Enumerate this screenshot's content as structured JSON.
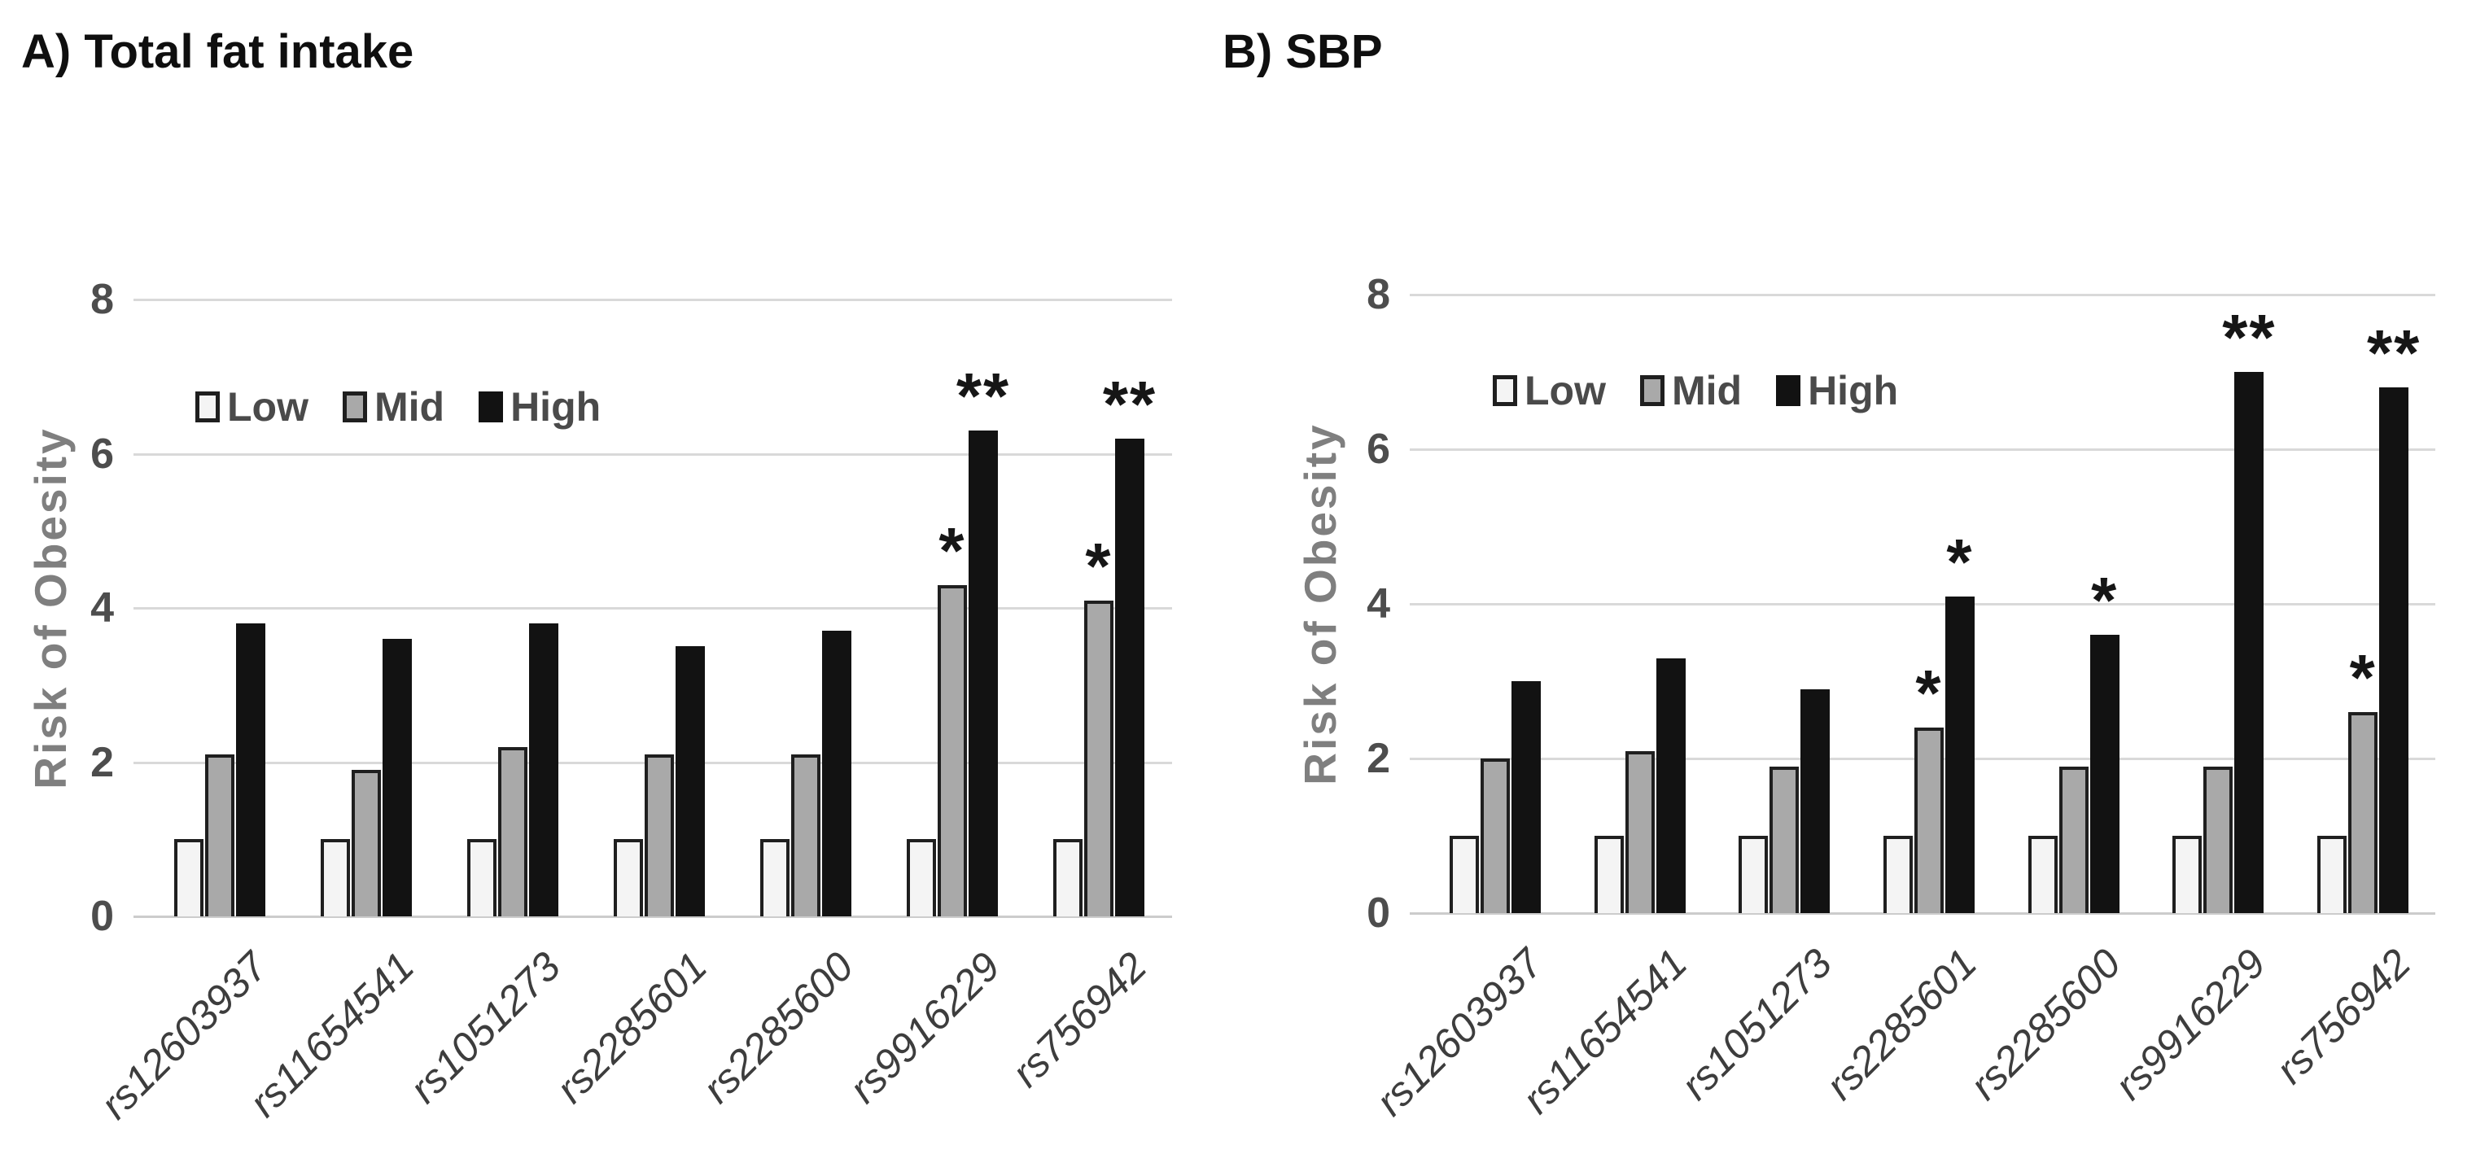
{
  "figure": {
    "background": "#ffffff",
    "colors": {
      "low_fill": "#f4f4f4",
      "mid_fill": "#a9a9a9",
      "high_fill": "#121212",
      "bar_border": "#1f1f1f",
      "gridline": "#d9d9d9",
      "baseline": "#cccccc",
      "axis_text": "#4d4d4d",
      "ylabel_text": "#7f7f7f",
      "legend_text": "#4a4a4a",
      "category_text": "#3d3d3d",
      "title_text": "#0f0f0f",
      "annotation_text": "#161616"
    }
  },
  "chart_data": [
    {
      "id": "A",
      "type": "bar",
      "title": "A) Total fat intake",
      "ylabel": "Risk of Obesity",
      "xlabel": "",
      "ylim": [
        0,
        8
      ],
      "yticks": [
        0,
        2,
        4,
        6,
        8
      ],
      "grid": true,
      "legend_position": "inside-top-left",
      "categories": [
        "rs12603937",
        "rs11654541",
        "rs1051273",
        "rs2285601",
        "rs2285600",
        "rs9916229",
        "rs756942"
      ],
      "series": [
        {
          "name": "Low",
          "values": [
            1.0,
            1.0,
            1.0,
            1.0,
            1.0,
            1.0,
            1.0
          ]
        },
        {
          "name": "Mid",
          "values": [
            2.1,
            1.9,
            2.2,
            2.1,
            2.1,
            4.3,
            4.1
          ]
        },
        {
          "name": "High",
          "values": [
            3.8,
            3.6,
            3.8,
            3.5,
            3.7,
            6.3,
            6.2
          ]
        }
      ],
      "annotations": [
        {
          "category": "rs9916229",
          "series": "Mid",
          "text": "*"
        },
        {
          "category": "rs9916229",
          "series": "High",
          "text": "**"
        },
        {
          "category": "rs756942",
          "series": "Mid",
          "text": "*"
        },
        {
          "category": "rs756942",
          "series": "High",
          "text": "**"
        }
      ]
    },
    {
      "id": "B",
      "type": "bar",
      "title": "B) SBP",
      "ylabel": "Risk of Obesity",
      "xlabel": "",
      "ylim": [
        0,
        8
      ],
      "yticks": [
        0,
        2,
        4,
        6,
        8
      ],
      "grid": true,
      "legend_position": "inside-top-left",
      "categories": [
        "rs12603937",
        "rs11654541",
        "rs1051273",
        "rs2285601",
        "rs2285600",
        "rs9916229",
        "rs756942"
      ],
      "series": [
        {
          "name": "Low",
          "values": [
            1.0,
            1.0,
            1.0,
            1.0,
            1.0,
            1.0,
            1.0
          ]
        },
        {
          "name": "Mid",
          "values": [
            2.0,
            2.1,
            1.9,
            2.4,
            1.9,
            1.9,
            2.6
          ]
        },
        {
          "name": "High",
          "values": [
            3.0,
            3.3,
            2.9,
            4.1,
            3.6,
            7.0,
            6.8
          ]
        }
      ],
      "annotations": [
        {
          "category": "rs2285601",
          "series": "Mid",
          "text": "*"
        },
        {
          "category": "rs2285601",
          "series": "High",
          "text": "*"
        },
        {
          "category": "rs2285600",
          "series": "High",
          "text": "*"
        },
        {
          "category": "rs9916229",
          "series": "High",
          "text": "**"
        },
        {
          "category": "rs756942",
          "series": "Mid",
          "text": "*"
        },
        {
          "category": "rs756942",
          "series": "High",
          "text": "**"
        }
      ]
    }
  ]
}
